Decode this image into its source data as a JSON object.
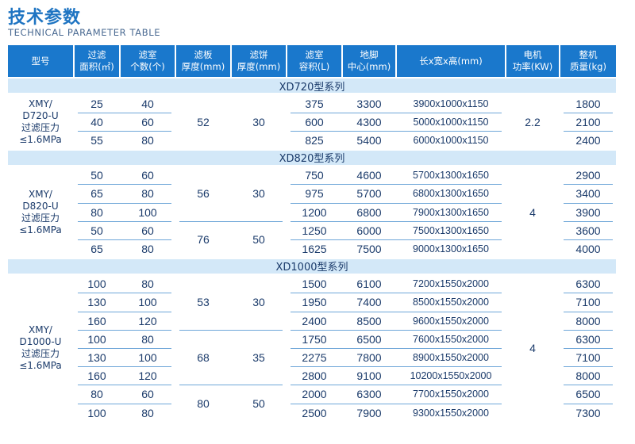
{
  "title": "技术参数",
  "subtitle": "TECHNICAL PARAMETER TABLE",
  "headers": [
    [
      "型号"
    ],
    [
      "过滤",
      "面积(㎡)"
    ],
    [
      "滤室",
      "个数(个)"
    ],
    [
      "滤板",
      "厚度(mm)"
    ],
    [
      "滤饼",
      "厚度(mm)"
    ],
    [
      "滤室",
      "容积(L)"
    ],
    [
      "地脚",
      "中心(mm)"
    ],
    [
      "长x宽x高(mm)"
    ],
    [
      "电机",
      "功率(KW)"
    ],
    [
      "整机",
      "质量(kg)"
    ]
  ],
  "groups": [
    {
      "series": "XD720型系列",
      "model": [
        "XMY/",
        "D720-U",
        "过滤压力",
        "≤1.6MPa"
      ],
      "rows": [
        {
          "area": "25",
          "chambers": "40",
          "volume": "375",
          "foot": "3300",
          "dims": "3900x1000x1150",
          "mass": "1800"
        },
        {
          "area": "40",
          "chambers": "60",
          "volume": "600",
          "foot": "4300",
          "dims": "5000x1000x1150",
          "mass": "2100"
        },
        {
          "area": "55",
          "chambers": "80",
          "volume": "825",
          "foot": "5400",
          "dims": "6000x1000x1150",
          "mass": "2400"
        }
      ],
      "plate_blocks": [
        {
          "plate": "52",
          "cake": "30"
        }
      ],
      "power": "2.2"
    },
    {
      "series": "XD820型系列",
      "model": [
        "XMY/",
        "D820-U",
        "过滤压力",
        "≤1.6MPa"
      ],
      "rows": [
        {
          "area": "50",
          "chambers": "60",
          "volume": "750",
          "foot": "4600",
          "dims": "5700x1300x1650",
          "mass": "2900"
        },
        {
          "area": "65",
          "chambers": "80",
          "volume": "975",
          "foot": "5700",
          "dims": "6800x1300x1650",
          "mass": "3400"
        },
        {
          "area": "80",
          "chambers": "100",
          "volume": "1200",
          "foot": "6800",
          "dims": "7900x1300x1650",
          "mass": "3900"
        },
        {
          "area": "50",
          "chambers": "60",
          "volume": "1250",
          "foot": "6000",
          "dims": "7500x1300x1650",
          "mass": "3600"
        },
        {
          "area": "65",
          "chambers": "80",
          "volume": "1625",
          "foot": "7500",
          "dims": "9000x1300x1650",
          "mass": "4000"
        }
      ],
      "plate_blocks": [
        {
          "plate": "56",
          "cake": "30"
        },
        {
          "plate": "76",
          "cake": "50"
        }
      ],
      "power": "4"
    },
    {
      "series": "XD1000型系列",
      "model": [
        "XMY/",
        "D1000-U",
        "过滤压力",
        "≤1.6MPa"
      ],
      "rows": [
        {
          "area": "100",
          "chambers": "80",
          "volume": "1500",
          "foot": "6100",
          "dims": "7200x1550x2000",
          "mass": "6300"
        },
        {
          "area": "130",
          "chambers": "100",
          "volume": "1950",
          "foot": "7400",
          "dims": "8500x1550x2000",
          "mass": "7100"
        },
        {
          "area": "160",
          "chambers": "120",
          "volume": "2400",
          "foot": "8500",
          "dims": "9600x1550x2000",
          "mass": "8000"
        },
        {
          "area": "100",
          "chambers": "80",
          "volume": "1750",
          "foot": "6500",
          "dims": "7600x1550x2000",
          "mass": "6300"
        },
        {
          "area": "130",
          "chambers": "100",
          "volume": "2275",
          "foot": "7800",
          "dims": "8900x1550x2000",
          "mass": "7100"
        },
        {
          "area": "160",
          "chambers": "120",
          "volume": "2800",
          "foot": "9100",
          "dims": "10200x1550x2000",
          "mass": "8000"
        },
        {
          "area": "80",
          "chambers": "60",
          "volume": "2000",
          "foot": "6300",
          "dims": "7700x1550x2000",
          "mass": "6500"
        },
        {
          "area": "100",
          "chambers": "80",
          "volume": "2500",
          "foot": "7900",
          "dims": "9300x1550x2000",
          "mass": "7300"
        }
      ],
      "plate_blocks": [
        {
          "plate": "53",
          "cake": "30"
        },
        {
          "plate": "68",
          "cake": "35"
        },
        {
          "plate": "80",
          "cake": "50"
        }
      ],
      "power": "4"
    }
  ]
}
